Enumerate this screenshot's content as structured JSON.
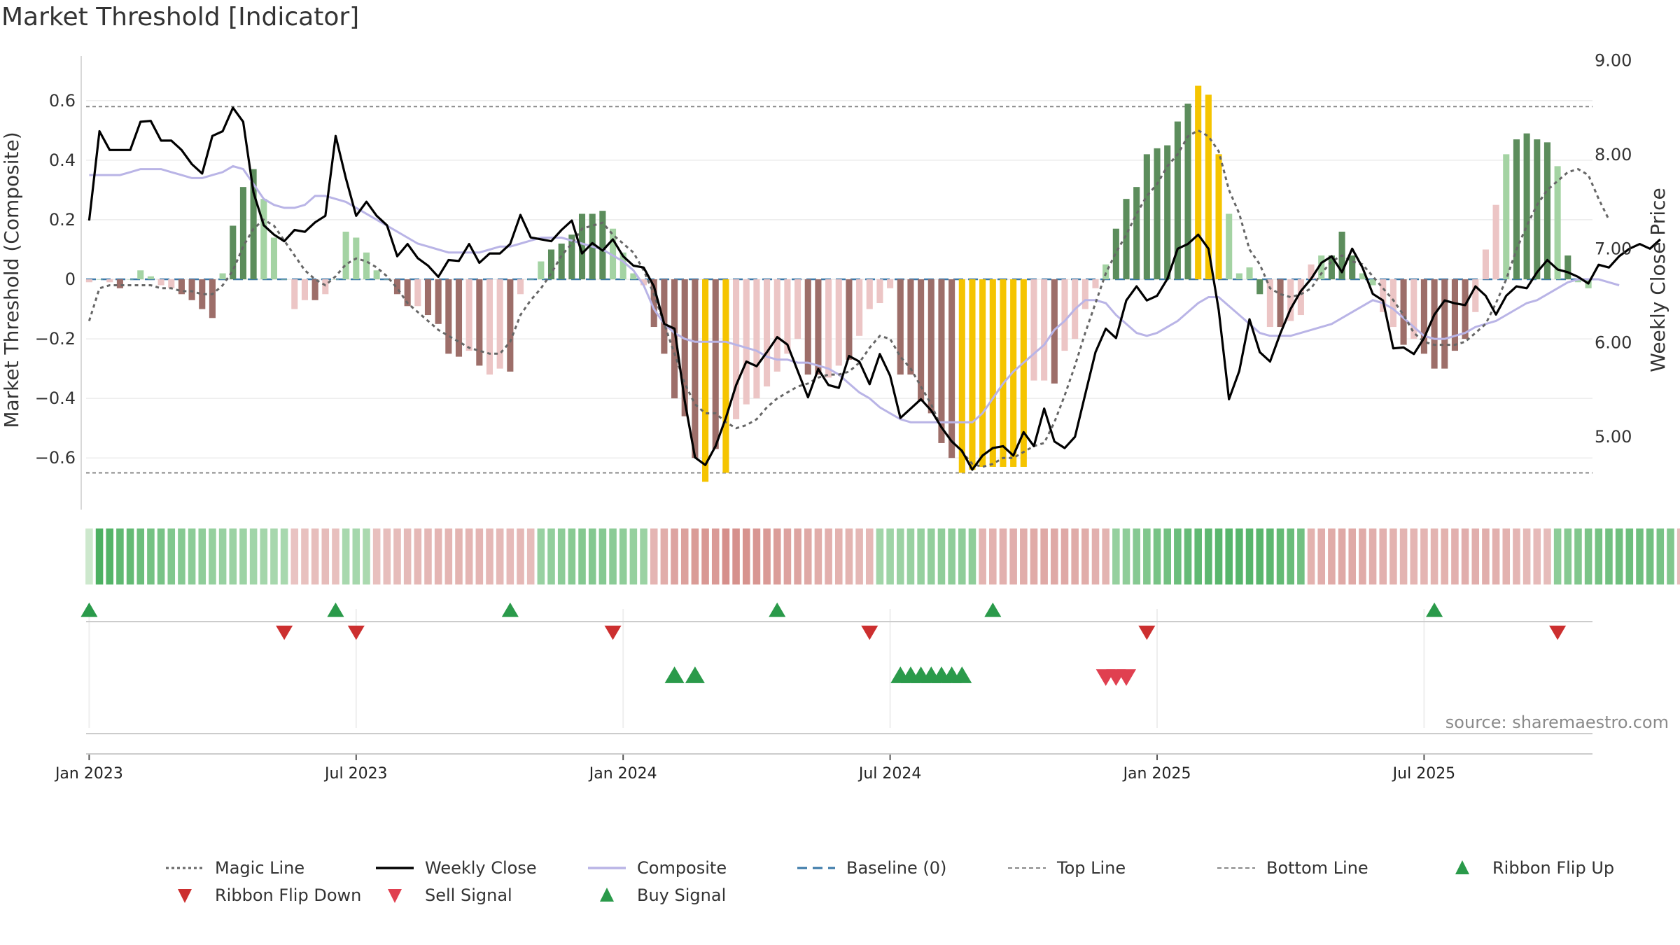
{
  "title": "Market Threshold [Indicator]",
  "source": "source: sharemaestro.com",
  "chart_data": {
    "type": "bar",
    "title": "Market Threshold [Indicator]",
    "ylabel": "Market Threshold (Composite)",
    "y2label": "Weekly Close Price",
    "ylim": [
      -0.75,
      0.75
    ],
    "y2lim": [
      4.3,
      9.05
    ],
    "yticks": [
      -0.6,
      -0.4,
      -0.2,
      0,
      0.2,
      0.4,
      0.6
    ],
    "ytick_labels": [
      "−0.6",
      "−0.4",
      "−0.2",
      "0",
      "0.2",
      "0.4",
      "0.6"
    ],
    "y2ticks": [
      5.0,
      6.0,
      7.0,
      8.0,
      9.0
    ],
    "y2tick_labels": [
      "5.00",
      "6.00",
      "7.00",
      "8.00",
      "9.00"
    ],
    "xticks": [
      "Jan 2023",
      "Jul 2023",
      "Jan 2024",
      "Jul 2024",
      "Jan 2025",
      "Jul 2025"
    ],
    "xtick_weeks": [
      1,
      27,
      53,
      79,
      105,
      131
    ],
    "top_line": 0.58,
    "bottom_line": -0.65,
    "composite_bars": [
      -0.01,
      0,
      -0.01,
      -0.03,
      0,
      0.03,
      0.01,
      -0.02,
      -0.03,
      -0.05,
      -0.07,
      -0.1,
      -0.13,
      0.02,
      0.18,
      0.31,
      0.37,
      0.27,
      0.14,
      0,
      -0.1,
      -0.07,
      -0.07,
      -0.05,
      0,
      0.16,
      0.14,
      0.09,
      0.03,
      0,
      -0.05,
      -0.09,
      -0.09,
      -0.12,
      -0.15,
      -0.25,
      -0.26,
      -0.24,
      -0.29,
      -0.32,
      -0.3,
      -0.31,
      -0.05,
      0,
      0.06,
      0.1,
      0.12,
      0.15,
      0.22,
      0.22,
      0.23,
      0.17,
      0.09,
      0.02,
      -0.02,
      -0.16,
      -0.25,
      -0.4,
      -0.46,
      -0.6,
      -0.68,
      -0.57,
      -0.65,
      -0.47,
      -0.42,
      -0.4,
      -0.36,
      -0.31,
      -0.25,
      -0.2,
      -0.32,
      -0.32,
      -0.33,
      -0.29,
      -0.27,
      -0.19,
      -0.1,
      -0.08,
      -0.03,
      -0.32,
      -0.32,
      -0.41,
      -0.45,
      -0.55,
      -0.6,
      -0.65,
      -0.64,
      -0.63,
      -0.63,
      -0.63,
      -0.63,
      -0.63,
      -0.34,
      -0.34,
      -0.35,
      -0.24,
      -0.2,
      -0.1,
      -0.03,
      0.05,
      0.17,
      0.27,
      0.31,
      0.42,
      0.44,
      0.45,
      0.53,
      0.59,
      0.65,
      0.62,
      0.42,
      0.22,
      0.02,
      0.04,
      -0.05,
      -0.16,
      -0.16,
      -0.14,
      -0.12,
      0.05,
      0.08,
      0.08,
      0.16,
      0.08,
      0.02,
      -0.02,
      -0.11,
      -0.16,
      -0.22,
      -0.2,
      -0.25,
      -0.3,
      -0.3,
      -0.24,
      -0.2,
      -0.11,
      0.1,
      0.25,
      0.42,
      0.47,
      0.49,
      0.47,
      0.46,
      0.38,
      0.08,
      -0.01,
      -0.03
    ],
    "bar_colors": [
      "#ecc5c5",
      "#a4d3a3",
      "#ecc5c5",
      "#9d6e69",
      "#a4d3a3",
      "#a4d3a3",
      "#a4d3a3",
      "#ecc5c5",
      "#ecc5c5",
      "#9d6e69",
      "#9d6e69",
      "#9d6e69",
      "#9d6e69",
      "#a4d3a3",
      "#5c8d5c",
      "#5c8d5c",
      "#5c8d5c",
      "#a4d3a3",
      "#a4d3a3",
      "#a4d3a3",
      "#ecc5c5",
      "#ecc5c5",
      "#9d6e69",
      "#ecc5c5",
      "#a4d3a3",
      "#a4d3a3",
      "#a4d3a3",
      "#a4d3a3",
      "#a4d3a3",
      "#a4d3a3",
      "#9d6e69",
      "#9d6e69",
      "#ecc5c5",
      "#9d6e69",
      "#9d6e69",
      "#9d6e69",
      "#9d6e69",
      "#ecc5c5",
      "#9d6e69",
      "#ecc5c5",
      "#ecc5c5",
      "#9d6e69",
      "#ecc5c5",
      "#a4d3a3",
      "#a4d3a3",
      "#5c8d5c",
      "#5c8d5c",
      "#5c8d5c",
      "#5c8d5c",
      "#5c8d5c",
      "#5c8d5c",
      "#a4d3a3",
      "#a4d3a3",
      "#a4d3a3",
      "#ecc5c5",
      "#9d6e69",
      "#9d6e69",
      "#9d6e69",
      "#9d6e69",
      "#9d6e69",
      "#f5c400",
      "#9d6e69",
      "#f5c400",
      "#ecc5c5",
      "#ecc5c5",
      "#ecc5c5",
      "#ecc5c5",
      "#ecc5c5",
      "#ecc5c5",
      "#ecc5c5",
      "#9d6e69",
      "#9d6e69",
      "#ecc5c5",
      "#ecc5c5",
      "#9d6e69",
      "#ecc5c5",
      "#ecc5c5",
      "#ecc5c5",
      "#ecc5c5",
      "#9d6e69",
      "#9d6e69",
      "#9d6e69",
      "#9d6e69",
      "#9d6e69",
      "#9d6e69",
      "#f5c400",
      "#f5c400",
      "#f5c400",
      "#f5c400",
      "#f5c400",
      "#f5c400",
      "#f5c400",
      "#ecc5c5",
      "#ecc5c5",
      "#9d6e69",
      "#ecc5c5",
      "#ecc5c5",
      "#ecc5c5",
      "#ecc5c5",
      "#a4d3a3",
      "#5c8d5c",
      "#5c8d5c",
      "#5c8d5c",
      "#5c8d5c",
      "#5c8d5c",
      "#5c8d5c",
      "#5c8d5c",
      "#5c8d5c",
      "#f5c400",
      "#f5c400",
      "#f5c400",
      "#a4d3a3",
      "#a4d3a3",
      "#a4d3a3",
      "#5c8d5c",
      "#ecc5c5",
      "#9d6e69",
      "#ecc5c5",
      "#ecc5c5",
      "#ecc5c5",
      "#a4d3a3",
      "#5c8d5c",
      "#5c8d5c",
      "#5c8d5c",
      "#a4d3a3",
      "#a4d3a3",
      "#ecc5c5",
      "#ecc5c5",
      "#9d6e69",
      "#ecc5c5",
      "#9d6e69",
      "#9d6e69",
      "#9d6e69",
      "#9d6e69",
      "#9d6e69",
      "#ecc5c5",
      "#ecc5c5",
      "#ecc5c5",
      "#a4d3a3",
      "#5c8d5c",
      "#5c8d5c",
      "#5c8d5c",
      "#5c8d5c",
      "#a4d3a3",
      "#5c8d5c",
      "#a4d3a3",
      "#a4d3a3",
      "#ecc5c5",
      "#ecc5c5"
    ],
    "weekly_close": [
      7.3,
      8.25,
      8.05,
      8.05,
      8.05,
      8.35,
      8.36,
      8.15,
      8.15,
      8.05,
      7.9,
      7.8,
      8.2,
      8.25,
      8.5,
      8.35,
      7.6,
      7.25,
      7.15,
      7.08,
      7.2,
      7.18,
      7.28,
      7.35,
      8.2,
      7.75,
      7.35,
      7.5,
      7.35,
      7.25,
      6.92,
      7.05,
      6.9,
      6.82,
      6.7,
      6.88,
      6.87,
      7.05,
      6.85,
      6.95,
      6.95,
      7.05,
      7.36,
      7.12,
      7.1,
      7.08,
      7.2,
      7.3,
      6.95,
      7.06,
      6.98,
      7.1,
      6.92,
      6.82,
      6.8,
      6.6,
      6.2,
      6.15,
      5.38,
      4.78,
      4.7,
      4.9,
      5.2,
      5.55,
      5.8,
      5.75,
      5.9,
      6.06,
      5.98,
      5.7,
      5.42,
      5.72,
      5.55,
      5.52,
      5.86,
      5.8,
      5.56,
      5.88,
      5.65,
      5.2,
      5.3,
      5.4,
      5.28,
      5.1,
      4.95,
      4.85,
      4.65,
      4.8,
      4.88,
      4.9,
      4.8,
      5.05,
      4.9,
      5.3,
      4.95,
      4.88,
      5.0,
      5.45,
      5.9,
      6.15,
      6.05,
      6.45,
      6.6,
      6.45,
      6.5,
      6.68,
      7.0,
      7.05,
      7.15,
      7.0,
      6.35,
      5.4,
      5.7,
      6.25,
      5.9,
      5.8,
      6.1,
      6.36,
      6.55,
      6.68,
      6.85,
      6.92,
      6.75,
      7.0,
      6.8,
      6.52,
      6.45,
      5.94,
      5.95,
      5.88,
      6.05,
      6.3,
      6.45,
      6.42,
      6.4,
      6.6,
      6.5,
      6.3,
      6.5,
      6.6,
      6.58,
      6.75,
      6.88,
      6.78,
      6.75,
      6.7,
      6.63,
      6.83,
      6.8,
      6.92,
      7.0,
      7.05,
      7.0,
      7.1
    ],
    "composite_line": [
      0.35,
      0.35,
      0.35,
      0.35,
      0.36,
      0.37,
      0.37,
      0.37,
      0.36,
      0.35,
      0.34,
      0.34,
      0.35,
      0.36,
      0.38,
      0.37,
      0.32,
      0.27,
      0.25,
      0.24,
      0.24,
      0.25,
      0.28,
      0.28,
      0.27,
      0.26,
      0.24,
      0.22,
      0.2,
      0.18,
      0.16,
      0.14,
      0.12,
      0.11,
      0.1,
      0.09,
      0.09,
      0.09,
      0.09,
      0.1,
      0.11,
      0.11,
      0.12,
      0.13,
      0.14,
      0.14,
      0.14,
      0.13,
      0.12,
      0.11,
      0.1,
      0.08,
      0.06,
      0.03,
      -0.02,
      -0.1,
      -0.15,
      -0.18,
      -0.2,
      -0.21,
      -0.21,
      -0.21,
      -0.21,
      -0.22,
      -0.23,
      -0.24,
      -0.26,
      -0.27,
      -0.27,
      -0.28,
      -0.28,
      -0.29,
      -0.3,
      -0.32,
      -0.35,
      -0.38,
      -0.4,
      -0.43,
      -0.45,
      -0.47,
      -0.48,
      -0.48,
      -0.48,
      -0.48,
      -0.48,
      -0.48,
      -0.48,
      -0.45,
      -0.4,
      -0.35,
      -0.31,
      -0.28,
      -0.25,
      -0.22,
      -0.17,
      -0.14,
      -0.1,
      -0.07,
      -0.07,
      -0.08,
      -0.12,
      -0.15,
      -0.18,
      -0.19,
      -0.18,
      -0.16,
      -0.14,
      -0.11,
      -0.08,
      -0.06,
      -0.06,
      -0.09,
      -0.12,
      -0.15,
      -0.18,
      -0.19,
      -0.19,
      -0.19,
      -0.18,
      -0.17,
      -0.16,
      -0.15,
      -0.13,
      -0.11,
      -0.09,
      -0.07,
      -0.08,
      -0.1,
      -0.13,
      -0.16,
      -0.19,
      -0.2,
      -0.2,
      -0.19,
      -0.18,
      -0.16,
      -0.15,
      -0.14,
      -0.12,
      -0.1,
      -0.08,
      -0.07,
      -0.05,
      -0.03,
      -0.01,
      0.0,
      0.0,
      0.0,
      -0.01,
      -0.02
    ],
    "magic_line": [
      -0.14,
      -0.03,
      -0.02,
      -0.02,
      -0.02,
      -0.02,
      -0.02,
      -0.03,
      -0.03,
      -0.04,
      -0.04,
      -0.05,
      -0.05,
      -0.02,
      0.03,
      0.11,
      0.17,
      0.2,
      0.18,
      0.13,
      0.08,
      0.03,
      0.0,
      -0.02,
      0.01,
      0.05,
      0.07,
      0.06,
      0.04,
      0.01,
      -0.03,
      -0.08,
      -0.11,
      -0.14,
      -0.17,
      -0.19,
      -0.21,
      -0.23,
      -0.24,
      -0.25,
      -0.25,
      -0.21,
      -0.12,
      -0.07,
      -0.03,
      0.02,
      0.08,
      0.12,
      0.17,
      0.18,
      0.19,
      0.15,
      0.12,
      0.09,
      0.03,
      -0.05,
      -0.15,
      -0.25,
      -0.35,
      -0.42,
      -0.45,
      -0.45,
      -0.48,
      -0.5,
      -0.49,
      -0.47,
      -0.43,
      -0.4,
      -0.38,
      -0.36,
      -0.35,
      -0.33,
      -0.32,
      -0.32,
      -0.31,
      -0.28,
      -0.23,
      -0.19,
      -0.2,
      -0.26,
      -0.3,
      -0.36,
      -0.42,
      -0.5,
      -0.54,
      -0.58,
      -0.62,
      -0.63,
      -0.62,
      -0.6,
      -0.6,
      -0.58,
      -0.56,
      -0.55,
      -0.48,
      -0.39,
      -0.29,
      -0.18,
      -0.08,
      0.02,
      0.09,
      0.15,
      0.22,
      0.28,
      0.32,
      0.38,
      0.42,
      0.48,
      0.5,
      0.48,
      0.43,
      0.3,
      0.22,
      0.1,
      0.05,
      -0.03,
      -0.05,
      -0.06,
      -0.05,
      -0.03,
      0.02,
      0.06,
      0.08,
      0.06,
      0.05,
      0.01,
      -0.03,
      -0.07,
      -0.12,
      -0.18,
      -0.21,
      -0.22,
      -0.22,
      -0.22,
      -0.21,
      -0.18,
      -0.15,
      -0.08,
      0.0,
      0.1,
      0.18,
      0.25,
      0.3,
      0.33,
      0.36,
      0.37,
      0.35,
      0.27,
      0.2
    ],
    "ribbon": [
      [
        1,
        0
      ],
      [
        1,
        0.88
      ],
      [
        1,
        0.82
      ],
      [
        1,
        0.74
      ],
      [
        1,
        0.72
      ],
      [
        1,
        0.66
      ],
      [
        1,
        0.6
      ],
      [
        1,
        0.58
      ],
      [
        1,
        0.52
      ],
      [
        1,
        0.48
      ],
      [
        1,
        0.44
      ],
      [
        1,
        0.42
      ],
      [
        1,
        0.38
      ],
      [
        1,
        0.36
      ],
      [
        1,
        0.34
      ],
      [
        1,
        0.33
      ],
      [
        1,
        0.3
      ],
      [
        1,
        0.28
      ],
      [
        1,
        0.26
      ],
      [
        1,
        0.25
      ],
      [
        -1,
        0.22
      ],
      [
        -1,
        0.25
      ],
      [
        -1,
        0.28
      ],
      [
        -1,
        0.3
      ],
      [
        -1,
        0.26
      ],
      [
        1,
        0.25
      ],
      [
        1,
        0.27
      ],
      [
        1,
        0.24
      ],
      [
        -1,
        0.26
      ],
      [
        -1,
        0.28
      ],
      [
        -1,
        0.3
      ],
      [
        -1,
        0.33
      ],
      [
        -1,
        0.35
      ],
      [
        -1,
        0.36
      ],
      [
        -1,
        0.38
      ],
      [
        -1,
        0.38
      ],
      [
        -1,
        0.4
      ],
      [
        -1,
        0.38
      ],
      [
        -1,
        0.38
      ],
      [
        -1,
        0.35
      ],
      [
        -1,
        0.34
      ],
      [
        -1,
        0.32
      ],
      [
        -1,
        0.35
      ],
      [
        -1,
        0.3
      ],
      [
        1,
        0.36
      ],
      [
        1,
        0.4
      ],
      [
        1,
        0.44
      ],
      [
        1,
        0.47
      ],
      [
        1,
        0.5
      ],
      [
        1,
        0.5
      ],
      [
        1,
        0.48
      ],
      [
        1,
        0.45
      ],
      [
        1,
        0.42
      ],
      [
        1,
        0.38
      ],
      [
        1,
        0.34
      ],
      [
        -1,
        0.38
      ],
      [
        -1,
        0.48
      ],
      [
        -1,
        0.58
      ],
      [
        -1,
        0.62
      ],
      [
        -1,
        0.68
      ],
      [
        -1,
        0.72
      ],
      [
        -1,
        0.7
      ],
      [
        -1,
        0.82
      ],
      [
        -1,
        0.8
      ],
      [
        -1,
        0.78
      ],
      [
        -1,
        0.74
      ],
      [
        -1,
        0.7
      ],
      [
        -1,
        0.66
      ],
      [
        -1,
        0.6
      ],
      [
        -1,
        0.58
      ],
      [
        -1,
        0.52
      ],
      [
        -1,
        0.48
      ],
      [
        -1,
        0.45
      ],
      [
        -1,
        0.42
      ],
      [
        -1,
        0.4
      ],
      [
        -1,
        0.36
      ],
      [
        -1,
        0.35
      ],
      [
        1,
        0.3
      ],
      [
        1,
        0.32
      ],
      [
        1,
        0.34
      ],
      [
        1,
        0.36
      ],
      [
        1,
        0.38
      ],
      [
        1,
        0.4
      ],
      [
        1,
        0.42
      ],
      [
        1,
        0.42
      ],
      [
        1,
        0.42
      ],
      [
        1,
        0.42
      ],
      [
        -1,
        0.4
      ],
      [
        -1,
        0.42
      ],
      [
        -1,
        0.44
      ],
      [
        -1,
        0.46
      ],
      [
        -1,
        0.48
      ],
      [
        -1,
        0.5
      ],
      [
        -1,
        0.52
      ],
      [
        -1,
        0.52
      ],
      [
        -1,
        0.52
      ],
      [
        -1,
        0.5
      ],
      [
        -1,
        0.48
      ],
      [
        -1,
        0.44
      ],
      [
        -1,
        0.4
      ],
      [
        1,
        0.38
      ],
      [
        1,
        0.42
      ],
      [
        1,
        0.48
      ],
      [
        1,
        0.52
      ],
      [
        1,
        0.58
      ],
      [
        1,
        0.62
      ],
      [
        1,
        0.66
      ],
      [
        1,
        0.7
      ],
      [
        1,
        0.74
      ],
      [
        1,
        0.76
      ],
      [
        1,
        0.78
      ],
      [
        1,
        0.8
      ],
      [
        1,
        0.8
      ],
      [
        1,
        0.8
      ],
      [
        1,
        0.78
      ],
      [
        1,
        0.76
      ],
      [
        1,
        0.72
      ],
      [
        1,
        0.68
      ],
      [
        1,
        0.62
      ],
      [
        -1,
        0.42
      ],
      [
        -1,
        0.46
      ],
      [
        -1,
        0.5
      ],
      [
        -1,
        0.52
      ],
      [
        -1,
        0.52
      ],
      [
        -1,
        0.5
      ],
      [
        -1,
        0.46
      ],
      [
        -1,
        0.44
      ],
      [
        -1,
        0.42
      ],
      [
        -1,
        0.4
      ],
      [
        -1,
        0.38
      ],
      [
        -1,
        0.38
      ],
      [
        -1,
        0.4
      ],
      [
        -1,
        0.42
      ],
      [
        -1,
        0.44
      ],
      [
        -1,
        0.46
      ],
      [
        -1,
        0.46
      ],
      [
        -1,
        0.46
      ],
      [
        -1,
        0.44
      ],
      [
        -1,
        0.42
      ],
      [
        -1,
        0.38
      ],
      [
        -1,
        0.34
      ],
      [
        -1,
        0.32
      ],
      [
        -1,
        0.3
      ],
      [
        1,
        0.44
      ],
      [
        1,
        0.48
      ],
      [
        1,
        0.52
      ],
      [
        1,
        0.56
      ],
      [
        1,
        0.6
      ],
      [
        1,
        0.62
      ],
      [
        1,
        0.64
      ],
      [
        1,
        0.66
      ],
      [
        1,
        0.64
      ],
      [
        1,
        0.62
      ],
      [
        1,
        0.58
      ],
      [
        1,
        0.52
      ],
      [
        -1,
        0.3
      ]
    ],
    "ribbon_flip_up_weeks": [
      1,
      25,
      42,
      68,
      89,
      132
    ],
    "ribbon_flip_down_weeks": [
      20,
      27,
      52,
      77,
      104,
      144
    ],
    "buy_signal_weeks": [
      58,
      60,
      80,
      81,
      82,
      83,
      84,
      85,
      86
    ],
    "sell_signal_weeks": [
      100,
      101,
      102
    ]
  },
  "legend": [
    {
      "label": "Magic Line",
      "symbol": "dotted-line",
      "color": "#666666"
    },
    {
      "label": "Weekly Close",
      "symbol": "solid-line",
      "color": "#000000"
    },
    {
      "label": "Composite",
      "symbol": "solid-line",
      "color": "#b9b4e6"
    },
    {
      "label": "Baseline (0)",
      "symbol": "dashed-line",
      "color": "#3a78a8"
    },
    {
      "label": "Top Line",
      "symbol": "dashed-line",
      "color": "#888888"
    },
    {
      "label": "Bottom Line",
      "symbol": "dashed-line",
      "color": "#888888"
    },
    {
      "label": "Ribbon Flip Up",
      "symbol": "triangle-up",
      "color": "#2a9a4a"
    },
    {
      "label": "Ribbon Flip Down",
      "symbol": "triangle-down",
      "color": "#cc2f2f"
    },
    {
      "label": "Sell Signal",
      "symbol": "triangle-down",
      "color": "#e04050"
    },
    {
      "label": "Buy Signal",
      "symbol": "triangle-up",
      "color": "#2a9a4a"
    }
  ]
}
